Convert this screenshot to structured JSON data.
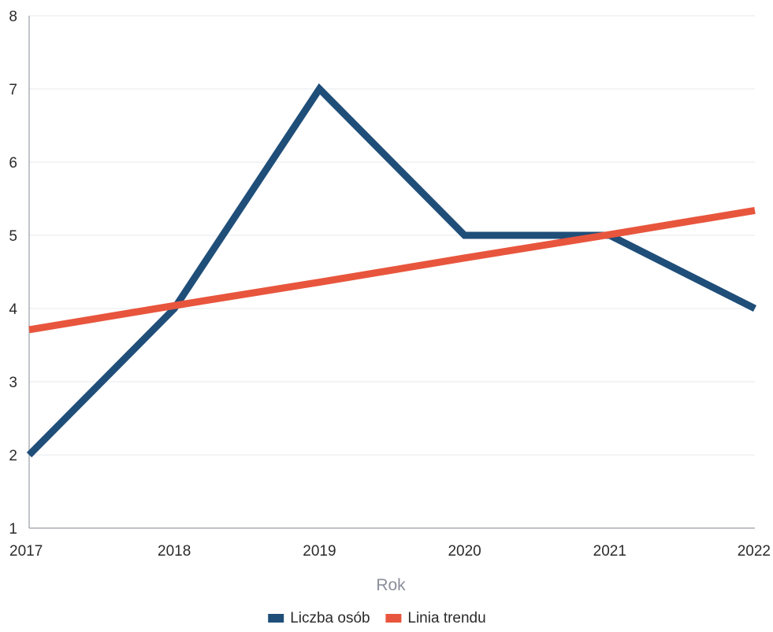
{
  "chart_data": {
    "type": "line",
    "title": "",
    "xlabel": "Rok",
    "ylabel": "",
    "x": [
      2017,
      2018,
      2019,
      2020,
      2021,
      2022
    ],
    "ylim": [
      1,
      8
    ],
    "yticks": [
      1,
      2,
      3,
      4,
      5,
      6,
      7,
      8
    ],
    "grid": true,
    "legend_position": "bottom",
    "series": [
      {
        "name": "Liczba osób",
        "color": "#1f4e79",
        "values": [
          2,
          4,
          7,
          5,
          5,
          4
        ]
      },
      {
        "name": "Linia trendu",
        "color": "#e8553d",
        "values": [
          3.71,
          4.04,
          4.36,
          4.69,
          5.01,
          5.34
        ]
      }
    ]
  }
}
